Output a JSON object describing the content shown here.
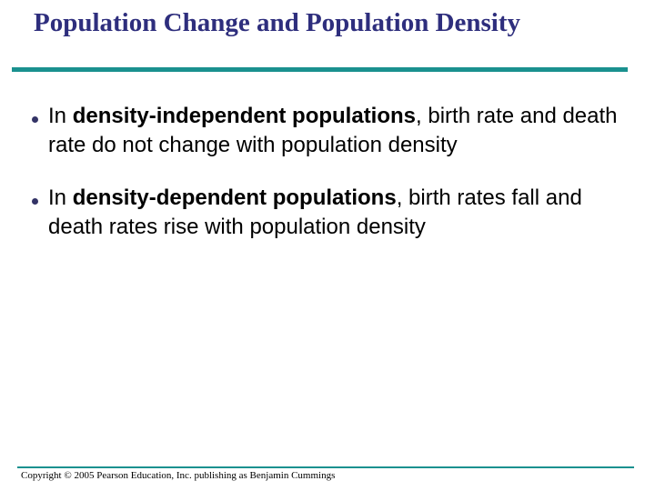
{
  "slide": {
    "title": "Population Change and Population Density",
    "bullets": [
      {
        "pre": "In ",
        "bold": "density-independent populations",
        "post": ", birth rate and death rate do not change with population density"
      },
      {
        "pre": "In ",
        "bold": "density-dependent populations",
        "post": ", birth rates fall and death rates rise with population density"
      }
    ],
    "footer": "Copyright © 2005 Pearson Education, Inc. publishing as Benjamin Cummings",
    "colors": {
      "title_text": "#2E2E7D",
      "rule_teal": "#1A918F",
      "bullet_dot": "#333366",
      "body_text": "#000000",
      "background": "#FFFFFF"
    }
  }
}
